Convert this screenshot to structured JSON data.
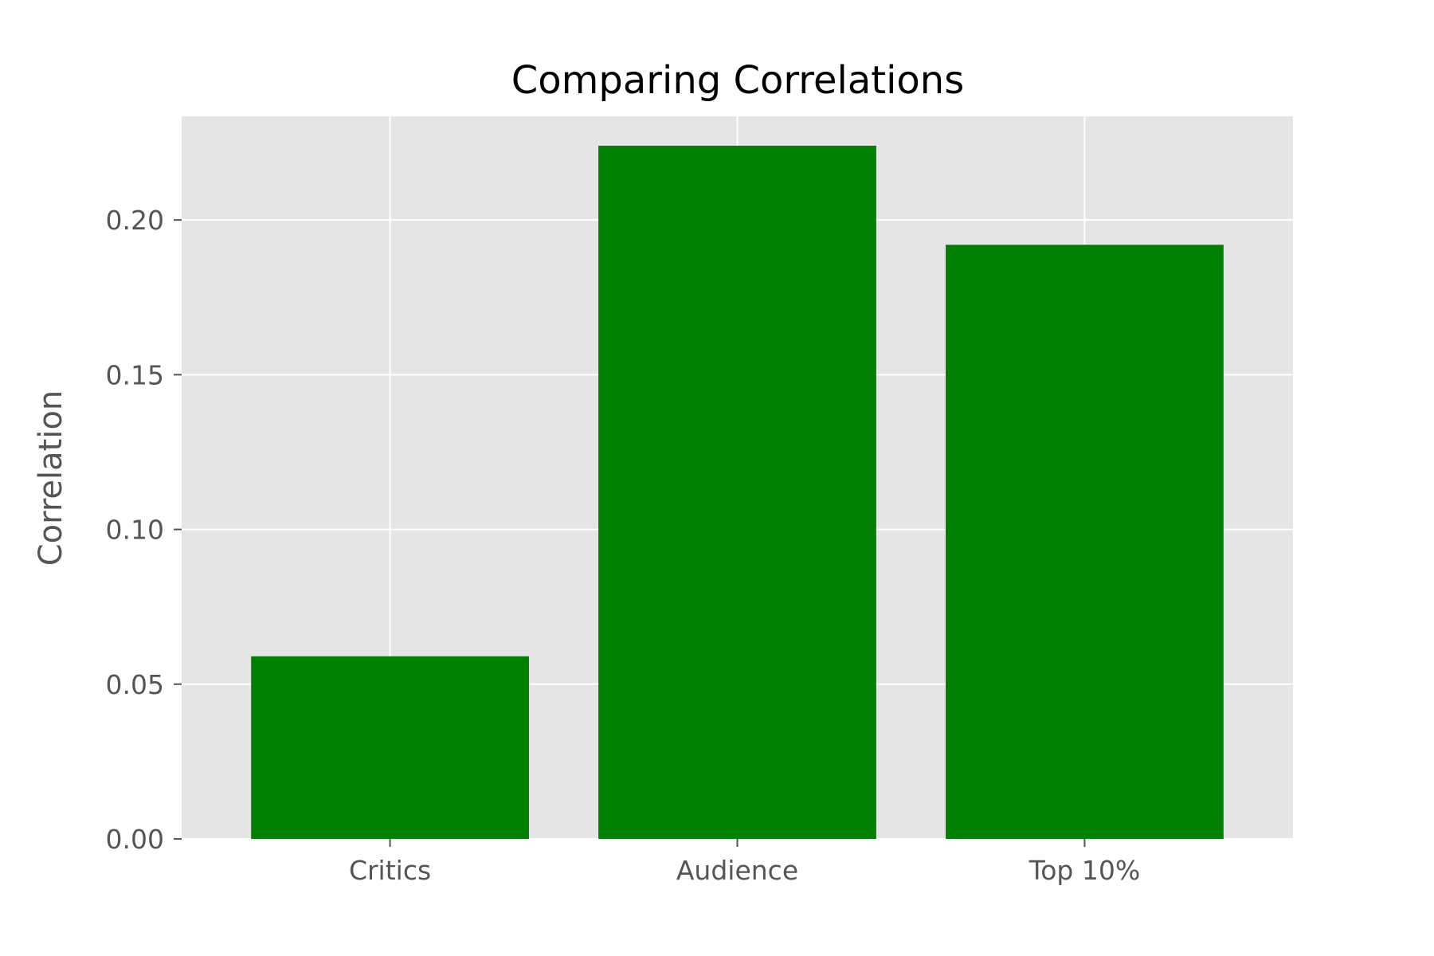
{
  "chart_data": {
    "type": "bar",
    "title": "Comparing Correlations",
    "xlabel": "",
    "ylabel": "Correlation",
    "categories": [
      "Critics",
      "Audience",
      "Top 10%"
    ],
    "values": [
      0.059,
      0.224,
      0.192
    ],
    "ylim": [
      0,
      0.2335
    ],
    "yticks": [
      "0.00",
      "0.05",
      "0.10",
      "0.15",
      "0.20"
    ],
    "grid": true,
    "legend": "none",
    "colors": {
      "bar": "#008000",
      "plot_background": "#e5e5e5",
      "grid": "#ffffff",
      "tick": "#555555"
    }
  }
}
